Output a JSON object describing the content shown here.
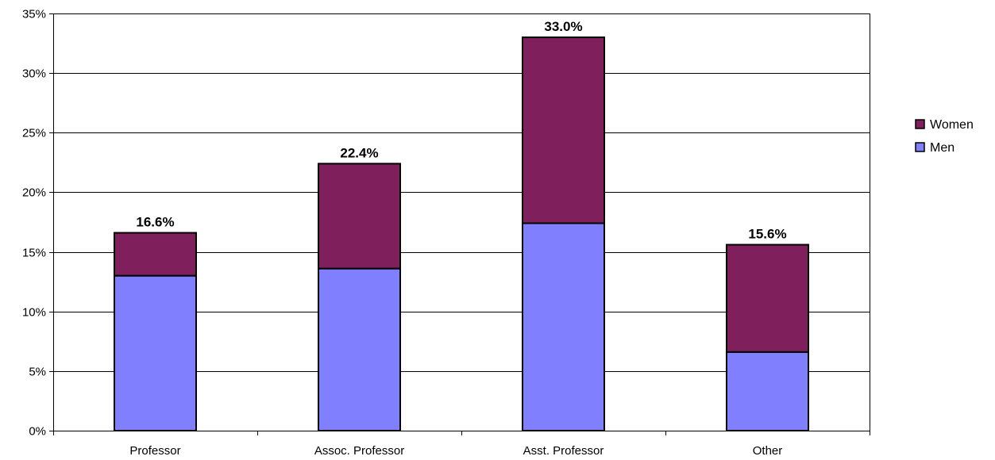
{
  "chart_data": {
    "type": "bar",
    "stacked": true,
    "categories": [
      "Professor",
      "Assoc. Professor",
      "Asst. Professor",
      "Other"
    ],
    "series": [
      {
        "name": "Men",
        "values": [
          13.0,
          13.6,
          17.4,
          6.6
        ],
        "color": "#8080ff"
      },
      {
        "name": "Women",
        "values": [
          3.6,
          8.8,
          15.6,
          9.0
        ],
        "color": "#7f1f5c"
      }
    ],
    "totals": [
      16.6,
      22.4,
      33.0,
      15.6
    ],
    "total_labels": [
      "16.6%",
      "22.4%",
      "33.0%",
      "15.6%"
    ],
    "y_ticks": [
      0,
      5,
      10,
      15,
      20,
      25,
      30,
      35
    ],
    "y_tick_labels": [
      "0%",
      "5%",
      "10%",
      "15%",
      "20%",
      "25%",
      "30%",
      "35%"
    ],
    "ylim": [
      0,
      35
    ],
    "grid": true,
    "legend": {
      "position": "right",
      "order": [
        "Women",
        "Men"
      ]
    },
    "title": "",
    "xlabel": "",
    "ylabel": ""
  }
}
